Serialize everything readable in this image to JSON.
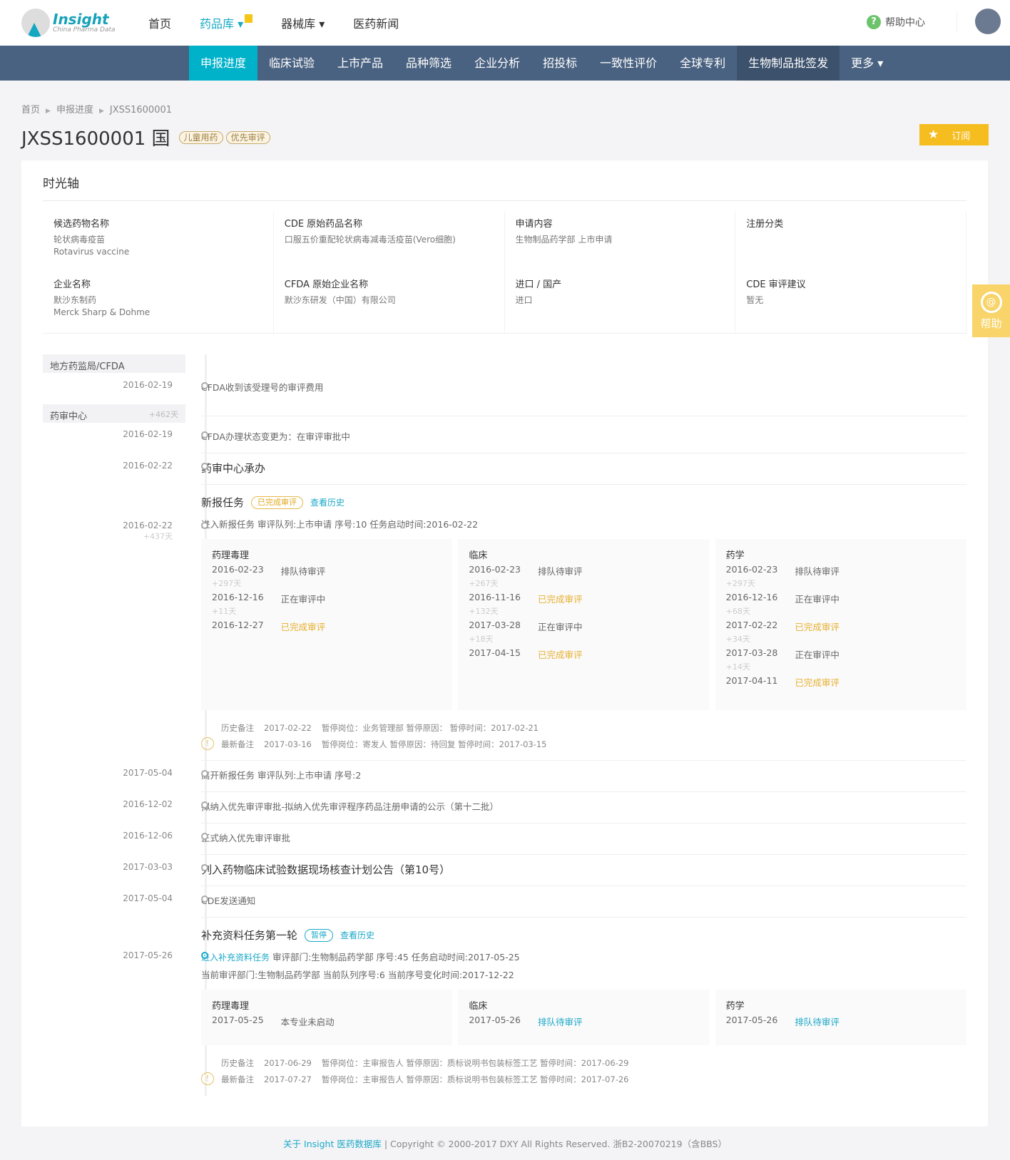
{
  "header": {
    "logo_title": "Insight",
    "logo_sub": "China Pharma Data",
    "nav": [
      "首页",
      "药品库",
      "器械库",
      "医药新闻"
    ],
    "help": "帮助中心"
  },
  "subnav": [
    "申报进度",
    "临床试验",
    "上市产品",
    "品种筛选",
    "企业分析",
    "招投标",
    "一致性评价",
    "全球专利",
    "生物制品批签发",
    "更多"
  ],
  "breadcrumb": [
    "首页",
    "申报进度",
    "JXSS1600001"
  ],
  "title": "JXSS1600001 国",
  "tags": [
    "儿童用药",
    "优先审评"
  ],
  "subscribe": "订阅",
  "section_title": "时光轴",
  "info": [
    {
      "label": "候选药物名称",
      "values": [
        "轮状病毒疫苗",
        "Rotavirus vaccine"
      ]
    },
    {
      "label": "CDE 原始药品名称",
      "values": [
        "口服五价重配轮状病毒减毒活疫苗(Vero细胞)"
      ]
    },
    {
      "label": "申请内容",
      "values": [
        "生物制品药学部  上市申请"
      ]
    },
    {
      "label": "注册分类",
      "values": [
        ""
      ]
    },
    {
      "label": "企业名称",
      "values": [
        "默沙东制药",
        "Merck Sharp & Dohme"
      ]
    },
    {
      "label": "CFDA 原始企业名称",
      "values": [
        "默沙东研发（中国）有限公司"
      ]
    },
    {
      "label": "进口 / 国产",
      "values": [
        "进口"
      ]
    },
    {
      "label": "CDE 审评建议",
      "values": [
        "暂无"
      ]
    }
  ],
  "timeline": {
    "sec1": "地方药监局/CFDA",
    "sec2": "药审中心",
    "sec2_days": "+462天",
    "e1": {
      "date": "2016-02-19",
      "text": "CFDA收到该受理号的审评费用"
    },
    "e2": {
      "date": "2016-02-19",
      "text": "CFDA办理状态变更为：在审评审批中"
    },
    "e3": {
      "date": "2016-02-22",
      "text": "药审中心承办"
    },
    "task1": {
      "title": "新报任务",
      "status": "已完成审评",
      "history": "查看历史",
      "date": "2016-02-22",
      "days": "+437天",
      "text": "进入新报任务   审评队列:上市申请   序号:10   任务启动时间:2016-02-22",
      "panels": [
        {
          "name": "药理毒理",
          "steps": [
            {
              "date": "2016-02-23",
              "status": "排队待审评",
              "days": "+297天"
            },
            {
              "date": "2016-12-16",
              "status": "正在审评中",
              "days": "+11天"
            },
            {
              "date": "2016-12-27",
              "status": "已完成审评",
              "days": ""
            }
          ]
        },
        {
          "name": "临床",
          "steps": [
            {
              "date": "2016-02-23",
              "status": "排队待审评",
              "days": "+267天"
            },
            {
              "date": "2016-11-16",
              "status": "已完成审评",
              "days": "+132天"
            },
            {
              "date": "2017-03-28",
              "status": "正在审评中",
              "days": "+18天"
            },
            {
              "date": "2017-04-15",
              "status": "已完成审评",
              "days": ""
            }
          ]
        },
        {
          "name": "药学",
          "steps": [
            {
              "date": "2016-02-23",
              "status": "排队待审评",
              "days": "+297天"
            },
            {
              "date": "2016-12-16",
              "status": "正在审评中",
              "days": "+68天"
            },
            {
              "date": "2017-02-22",
              "status": "已完成审评",
              "days": "+34天"
            },
            {
              "date": "2017-03-28",
              "status": "正在审评中",
              "days": "+14天"
            },
            {
              "date": "2017-04-11",
              "status": "已完成审评",
              "days": ""
            }
          ]
        }
      ],
      "notes": [
        {
          "label": "历史备注",
          "date": "2017-02-22",
          "text": "暂停岗位：业务管理部 暂停原因： 暂停时间：2017-02-21"
        },
        {
          "label": "最新备注",
          "date": "2017-03-16",
          "text": "暂停岗位：寄发人 暂停原因：待回复 暂停时间：2017-03-15"
        }
      ]
    },
    "events": [
      {
        "date": "2017-05-04",
        "text": "离开新报任务   审评队列:上市申请   序号:2",
        "big": false
      },
      {
        "date": "2016-12-02",
        "text": "拟纳入优先审评审批-拟纳入优先审评程序药品注册申请的公示（第十二批）",
        "big": false
      },
      {
        "date": "2016-12-06",
        "text": "正式纳入优先审评审批",
        "big": false
      },
      {
        "date": "2017-03-03",
        "text": "列入药物临床试验数据现场核查计划公告（第10号）",
        "big": true
      },
      {
        "date": "2017-05-04",
        "text": "CDE发送通知",
        "big": false
      }
    ],
    "task2": {
      "title": "补充资料任务第一轮",
      "status": "暂停",
      "history": "查看历史",
      "date": "2017-05-26",
      "link": "进入补充资料任务",
      "text": "   审评部门:生物制品药学部   序号:45   任务启动时间:2017-05-25",
      "text2": "当前审评部门:生物制品药学部   当前队列序号:6   当前序号变化时间:2017-12-22",
      "panels": [
        {
          "name": "药理毒理",
          "steps": [
            {
              "date": "2017-05-25",
              "status": "本专业未启动",
              "days": ""
            }
          ]
        },
        {
          "name": "临床",
          "steps": [
            {
              "date": "2017-05-26",
              "status": "排队待审评",
              "days": ""
            }
          ]
        },
        {
          "name": "药学",
          "steps": [
            {
              "date": "2017-05-26",
              "status": "排队待审评",
              "days": ""
            }
          ]
        }
      ],
      "notes": [
        {
          "label": "历史备注",
          "date": "2017-06-29",
          "text": "暂停岗位：主审报告人 暂停原因：质标说明书包装标签工艺 暂停时间：2017-06-29"
        },
        {
          "label": "最新备注",
          "date": "2017-07-27",
          "text": "暂停岗位：主审报告人 暂停原因：质标说明书包装标签工艺 暂停时间：2017-07-26"
        }
      ]
    }
  },
  "float_help": "帮助",
  "footer": {
    "link": "关于 Insight 医药数据库",
    "text": " | Copyright © 2000-2017 DXY All Rights Reserved. 浙B2-20070219（含BBS）"
  },
  "colors": {
    "accent": "#00b2c9",
    "nav_bg": "#4a6281",
    "subscribe": "#f5bd1f",
    "done": "#e6b030"
  }
}
